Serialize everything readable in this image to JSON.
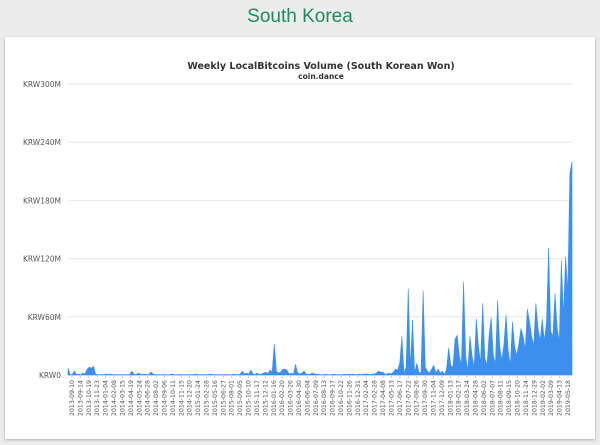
{
  "page": {
    "title": "South Korea"
  },
  "colors": {
    "title": "#1f8a5b",
    "series": "#3d8fef",
    "background": "#ececec"
  },
  "chart_data": {
    "type": "area",
    "title": "Weekly LocalBitcoins Volume (South Korean Won)",
    "subtitle": "coin.dance",
    "xlabel": "",
    "ylabel": "",
    "ylim": [
      0,
      300000000
    ],
    "yticks": [
      0,
      60000000,
      120000000,
      180000000,
      240000000,
      300000000
    ],
    "ytick_labels": [
      "KRW0",
      "KRW60M",
      "KRW120M",
      "KRW180M",
      "KRW240M",
      "KRW300M"
    ],
    "grid": true,
    "legend": "none",
    "x_labels": [
      "2013-09-10",
      "2013-09-14",
      "2013-10-19",
      "2013-11-23",
      "2014-01-04",
      "2014-02-08",
      "2014-03-15",
      "2014-04-19",
      "2014-05-24",
      "2014-06-28",
      "2014-08-02",
      "2014-09-06",
      "2014-10-11",
      "2014-11-15",
      "2014-12-20",
      "2015-01-24",
      "2015-02-28",
      "2015-05-16",
      "2015-06-27",
      "2015-08-01",
      "2015-09-05",
      "2015-10-10",
      "2015-11-17",
      "2015-12-12",
      "2016-01-16",
      "2016-02-20",
      "2016-03-26",
      "2016-04-30",
      "2016-06-04",
      "2016-07-09",
      "2016-08-13",
      "2016-09-17",
      "2016-10-22",
      "2016-11-26",
      "2016-12-31",
      "2017-02-04",
      "2017-02-28",
      "2017-04-08",
      "2017-05-13",
      "2017-06-17",
      "2017-07-22",
      "2017-08-26",
      "2017-09-30",
      "2017-11-04",
      "2017-12-09",
      "2018-01-13",
      "2018-02-17",
      "2018-03-24",
      "2018-04-28",
      "2018-06-02",
      "2018-07-07",
      "2018-08-11",
      "2018-09-15",
      "2018-10-20",
      "2018-11-24",
      "2018-12-29",
      "2019-02-02",
      "2019-03-09",
      "2019-04-13",
      "2019-05-18"
    ],
    "series": [
      {
        "values_millions": [
          7,
          0.5,
          0.5,
          4,
          0.5,
          1,
          0.3,
          2,
          1,
          6,
          8,
          7,
          9,
          1,
          0.5,
          0.3,
          0.5,
          0.5,
          1,
          0.5,
          1,
          0.5,
          0.5,
          0.5,
          0.3,
          0.5,
          0.5,
          0.5,
          0.3,
          0.5,
          4,
          1,
          0.5,
          2,
          1,
          0.5,
          1,
          0.5,
          0.5,
          3,
          1,
          0.5,
          0.5,
          0.5,
          0.3,
          0.5,
          0.5,
          0.3,
          0.5,
          1,
          0.5,
          0.3,
          0.5,
          0.5,
          0.3,
          0.5,
          0.3,
          0.5,
          0.5,
          0.5,
          1,
          0.5,
          0.3,
          0.5,
          0.3,
          0.5,
          0.5,
          1,
          0.5,
          0.5,
          0.3,
          0.5,
          0.3,
          0.5,
          0.5,
          0.5,
          0.3,
          0.5,
          1,
          0.5,
          0.5,
          1,
          4,
          1,
          2,
          1,
          5,
          1,
          0.5,
          2,
          0.5,
          1,
          2,
          3,
          1,
          5,
          3,
          32,
          4,
          2,
          3,
          6,
          6,
          5,
          1,
          2,
          1,
          11,
          2,
          1,
          2,
          4,
          1,
          0.5,
          1,
          2,
          1,
          1,
          0.5,
          0.3,
          0.5,
          1,
          0.5,
          0.3,
          0.5,
          1,
          0.5,
          0.5,
          0.3,
          0.5,
          1,
          0.5,
          1,
          0.5,
          1,
          0.5,
          0.5,
          1,
          0.5,
          1,
          1,
          1,
          0.5,
          1,
          1,
          2,
          4,
          3,
          3,
          1,
          1,
          2,
          1,
          3,
          6,
          5,
          12,
          40,
          2,
          8,
          89,
          6,
          57,
          2,
          12,
          3,
          2,
          87,
          8,
          4,
          2,
          6,
          10,
          2,
          6,
          2,
          4,
          0.5,
          6,
          28,
          10,
          8,
          37,
          41,
          20,
          10,
          96,
          20,
          4,
          40,
          20,
          8,
          58,
          30,
          12,
          74,
          18,
          10,
          40,
          59,
          20,
          12,
          77,
          30,
          15,
          32,
          62,
          25,
          10,
          55,
          30,
          20,
          32,
          48,
          40,
          26,
          68,
          55,
          40,
          30,
          74,
          49,
          35,
          58,
          35,
          54,
          131,
          45,
          40,
          84,
          50,
          34,
          118,
          60,
          122,
          85,
          208,
          220
        ]
      }
    ]
  }
}
